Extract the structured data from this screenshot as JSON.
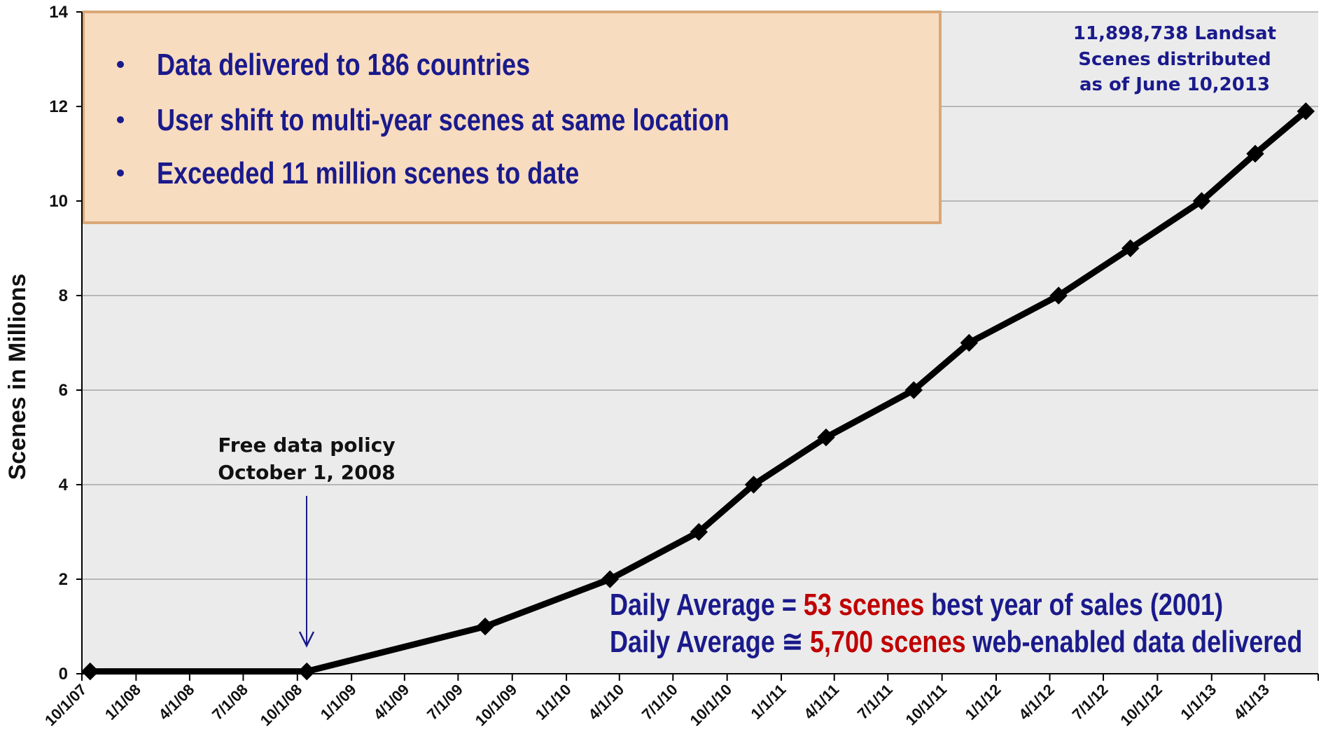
{
  "chart_data": {
    "type": "line",
    "y_label": "Scenes in Millions",
    "x": [
      "2007-10-15",
      "2008-10-17",
      "2009-08-16",
      "2010-03-16",
      "2010-08-14",
      "2010-11-15",
      "2011-03-18",
      "2011-08-14",
      "2011-11-16",
      "2012-04-16",
      "2012-08-16",
      "2012-12-15",
      "2013-03-16",
      "2013-06-10"
    ],
    "series": [
      {
        "color": "#000000",
        "values": [
          0.05,
          0.05,
          1,
          2,
          3,
          4,
          5,
          6,
          7,
          8,
          9,
          10,
          11,
          11.898738
        ]
      }
    ],
    "xlim": [
      "2007-10-01",
      "2013-07-01"
    ],
    "xticks": [
      {
        "value": "2007-10-01",
        "label": "10/1/07"
      },
      {
        "value": "2008-01-01",
        "label": "1/1/08"
      },
      {
        "value": "2008-04-01",
        "label": "4/1/08"
      },
      {
        "value": "2008-07-01",
        "label": "7/1/08"
      },
      {
        "value": "2008-10-01",
        "label": "10/1/08"
      },
      {
        "value": "2009-01-01",
        "label": "1/1/09"
      },
      {
        "value": "2009-04-01",
        "label": "4/1/09"
      },
      {
        "value": "2009-07-01",
        "label": "7/1/09"
      },
      {
        "value": "2009-10-01",
        "label": "10/1/09"
      },
      {
        "value": "2010-01-01",
        "label": "1/1/10"
      },
      {
        "value": "2010-04-01",
        "label": "4/1/10"
      },
      {
        "value": "2010-07-01",
        "label": "7/1/10"
      },
      {
        "value": "2010-10-01",
        "label": "10/1/10"
      },
      {
        "value": "2011-01-01",
        "label": "1/1/11"
      },
      {
        "value": "2011-04-01",
        "label": "4/1/11"
      },
      {
        "value": "2011-07-01",
        "label": "7/1/11"
      },
      {
        "value": "2011-10-01",
        "label": "10/1/11"
      },
      {
        "value": "2012-01-01",
        "label": "1/1/12"
      },
      {
        "value": "2012-04-01",
        "label": "4/1/12"
      },
      {
        "value": "2012-07-01",
        "label": "7/1/12"
      },
      {
        "value": "2012-10-01",
        "label": "10/1/12"
      },
      {
        "value": "2013-01-01",
        "label": "1/1/13"
      },
      {
        "value": "2013-04-01",
        "label": "4/1/13"
      }
    ],
    "ylim": [
      0,
      14
    ],
    "yticks": [
      0,
      2,
      4,
      6,
      8,
      10,
      12,
      14
    ],
    "grid": true,
    "annotations": {
      "box": [
        "Data delivered to 186 countries",
        "User shift to multi-year scenes at same location",
        "Exceeded 11 million scenes to date"
      ],
      "total": [
        "11,898,738 Landsat",
        "Scenes distributed",
        "as of June 10,2013"
      ],
      "policy": [
        "Free data policy",
        "October 1, 2008"
      ],
      "daily": [
        [
          "Daily Average =",
          "53 scenes",
          "best year of sales (2001)"
        ],
        [
          "Daily Average ≅",
          "5,700 scenes",
          "web-enabled data delivered"
        ]
      ]
    }
  }
}
